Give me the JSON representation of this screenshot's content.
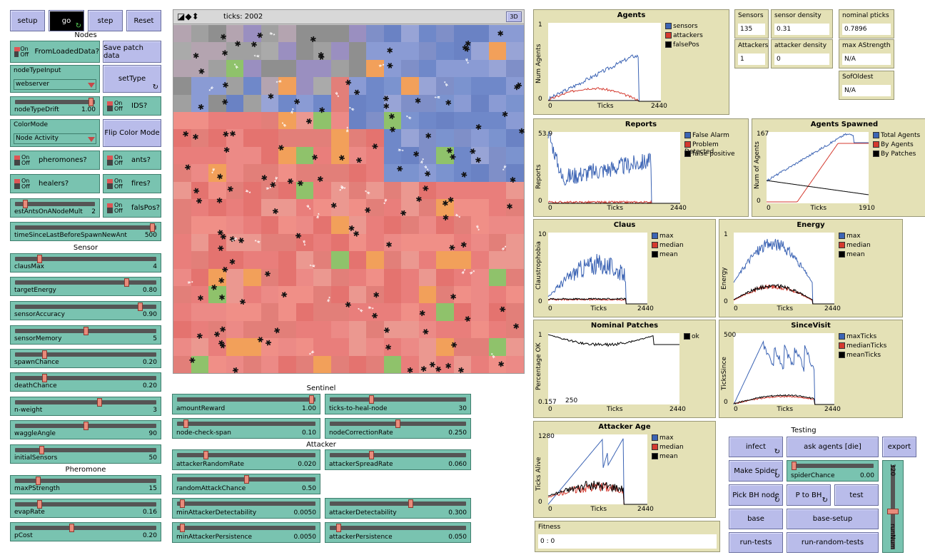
{
  "top_buttons": {
    "setup": "setup",
    "go": "go",
    "step": "step",
    "reset": "Reset"
  },
  "sections": {
    "nodes": "Nodes",
    "sensor": "Sensor",
    "pheromone": "Pheromone",
    "sentinel": "Sentinel",
    "attacker": "Attacker",
    "testing": "Testing"
  },
  "switches": {
    "on": "On",
    "off": "Off",
    "from_loaded": "FromLoadedData?",
    "ids": "IDS?",
    "pheromones": "pheromones?",
    "ants": "ants?",
    "healers": "healers?",
    "fires": "fires?",
    "falspos": "falsPos?"
  },
  "buttons": {
    "save_patch": "Save patch data",
    "settype": "setType",
    "flip_color": "Flip Color Mode",
    "infect": "infect",
    "ask_agents": "ask agents [die]",
    "export": "export",
    "make_spider": "Make Spider",
    "pick_bh": "Pick BH node",
    "p_to_bh": "P to BH",
    "test": "test",
    "base": "base",
    "base_setup": "base-setup",
    "run_tests": "run-tests",
    "run_random": "run-random-tests"
  },
  "choosers": {
    "node_type_label": "nodeTypeInput",
    "node_type_value": "webserver",
    "color_mode_label": "ColorMode",
    "color_mode_value": "Node Activity"
  },
  "sliders": {
    "nodeTypeDrift": {
      "label": "nodeTypeDrift",
      "value": "1.00",
      "frac": 0.98
    },
    "estAnts": {
      "label": "estAntsOnANodeMult",
      "value": "2",
      "frac": 0.1
    },
    "timeSince": {
      "label": "timeSinceLastBeforeSpawnNewAnt",
      "value": "500",
      "frac": 0.99
    },
    "clausMax": {
      "label": "clausMax",
      "value": "4",
      "frac": 0.16
    },
    "targetEnergy": {
      "label": "targetEnergy",
      "value": "0.80",
      "frac": 0.8
    },
    "sensorAccuracy": {
      "label": "sensorAccuracy",
      "value": "0.90",
      "frac": 0.9
    },
    "sensorMemory": {
      "label": "sensorMemory",
      "value": "5",
      "frac": 0.5
    },
    "spawnChance": {
      "label": "spawnChance",
      "value": "0.20",
      "frac": 0.2
    },
    "deathChance": {
      "label": "deathChance",
      "value": "0.20",
      "frac": 0.2
    },
    "nweight": {
      "label": "n-weight",
      "value": "3",
      "frac": 0.6
    },
    "waggleAngle": {
      "label": "waggleAngle",
      "value": "90",
      "frac": 0.5
    },
    "initialSensors": {
      "label": "initialSensors",
      "value": "50",
      "frac": 0.18
    },
    "maxPStrength": {
      "label": "maxPStrength",
      "value": "15",
      "frac": 0.15
    },
    "evapRate": {
      "label": "evapRate",
      "value": "0.16",
      "frac": 0.16
    },
    "pCost": {
      "label": "pCost",
      "value": "0.20",
      "frac": 0.4
    },
    "amountReward": {
      "label": "amountReward",
      "value": "1.00",
      "frac": 0.99
    },
    "ticksToHeal": {
      "label": "ticks-to-heal-node",
      "value": "30",
      "frac": 0.3
    },
    "nodeCheckSpan": {
      "label": "node-check-span",
      "value": "0.10",
      "frac": 0.05
    },
    "nodeCorrection": {
      "label": "nodeCorrectionRate",
      "value": "0.250",
      "frac": 0.5
    },
    "attackerRandomRate": {
      "label": "attackerRandomRate",
      "value": "0.020",
      "frac": 0.2
    },
    "attackerSpreadRate": {
      "label": "attackerSpreadRate",
      "value": "0.060",
      "frac": 0.3
    },
    "randomAttackChance": {
      "label": "randomAttackChance",
      "value": "0.50",
      "frac": 0.5
    },
    "minAttackerDetect": {
      "label": "minAttackerDetectability",
      "value": "0.0050",
      "frac": 0.02
    },
    "attackerDetect": {
      "label": "attackerDetectability",
      "value": "0.300",
      "frac": 0.6
    },
    "minAttackerPersist": {
      "label": "minAttackerPersistence",
      "value": "0.0050",
      "frac": 0.02
    },
    "attackerPersist": {
      "label": "attackerPersistence",
      "value": "0.050",
      "frac": 0.05
    },
    "spiderChance": {
      "label": "spiderChance",
      "value": "0.00",
      "frac": 0.0
    },
    "runNum": {
      "label": "runNum",
      "value": "320",
      "frac": 0.45
    }
  },
  "world": {
    "ticks": "ticks: 2002",
    "threed": "3D"
  },
  "monitors": {
    "sensors": {
      "label": "Sensors",
      "value": "135"
    },
    "sensor_density": {
      "label": "sensor density",
      "value": "0.31"
    },
    "nominal": {
      "label": "nominal pticks",
      "value": "0.7896"
    },
    "attackers": {
      "label": "Attackers",
      "value": "1"
    },
    "attacker_density": {
      "label": "attacker density",
      "value": "0"
    },
    "max_astrength": {
      "label": "max AStrength",
      "value": "N/A"
    },
    "sof_oldest": {
      "label": "SofOldest",
      "value": "N/A"
    },
    "fitness": {
      "label": "Fitness",
      "value": "0 : 0"
    }
  },
  "plots": {
    "agents": {
      "title": "Agents",
      "ylabel": "Num Agents",
      "xlabel": "Ticks",
      "xmin": "0",
      "xmax": "2440",
      "ymin": "0",
      "ymax": "1",
      "legend": [
        "sensors",
        "attackers",
        "falsePos"
      ]
    },
    "reports": {
      "title": "Reports",
      "ylabel": "Reports",
      "xlabel": "Ticks",
      "xmin": "0",
      "xmax": "2440",
      "ymin": "0",
      "ymax": "53.9",
      "legend": [
        "False Alarm",
        "Problem Detected",
        "false positive"
      ]
    },
    "spawned": {
      "title": "Agents Spawned",
      "ylabel": "Num of Agents",
      "xlabel": "Ticks",
      "xmin": "0",
      "xmax": "1910",
      "ymin": "0",
      "ymax": "167",
      "legend": [
        "Total Agents",
        "By Agents",
        "By Patches"
      ]
    },
    "claus": {
      "title": "Claus",
      "ylabel": "Claustrophobia",
      "xlabel": "Ticks",
      "xmin": "0",
      "xmax": "2440",
      "ymin": "0",
      "ymax": "10",
      "legend": [
        "max",
        "median",
        "mean"
      ]
    },
    "energy": {
      "title": "Energy",
      "ylabel": "Energy",
      "xlabel": "Ticks",
      "xmin": "0",
      "xmax": "2440",
      "ymin": "0",
      "ymax": "1",
      "legend": [
        "max",
        "median",
        "mean"
      ]
    },
    "nominal": {
      "title": "Nominal Patches",
      "ylabel": "Percentage OK",
      "xlabel": "Ticks",
      "xmin": "0",
      "xmax": "2440",
      "ymin": "0.157",
      "ymax": "1",
      "extra": "250",
      "legend": [
        "ok"
      ]
    },
    "sincevisit": {
      "title": "SinceVisit",
      "ylabel": "TicksSince",
      "xlabel": "Ticks",
      "xmin": "0",
      "xmax": "2440",
      "ymin": "0",
      "ymax": "500",
      "legend": [
        "maxTicks",
        "medianTicks",
        "meanTicks"
      ]
    },
    "attackerage": {
      "title": "Attacker Age",
      "ylabel": "Ticks Alive",
      "xlabel": "Ticks",
      "xmin": "0",
      "xmax": "2440",
      "ymin": "0",
      "ymax": "1280",
      "legend": [
        "max",
        "median",
        "mean"
      ]
    }
  },
  "colors": {
    "blue": "#3c64b4",
    "red": "#d43a2f",
    "black": "#000000",
    "plot_bg": "#e4e1b6",
    "slider": "#79c3b0",
    "button": "#b9bcea"
  }
}
